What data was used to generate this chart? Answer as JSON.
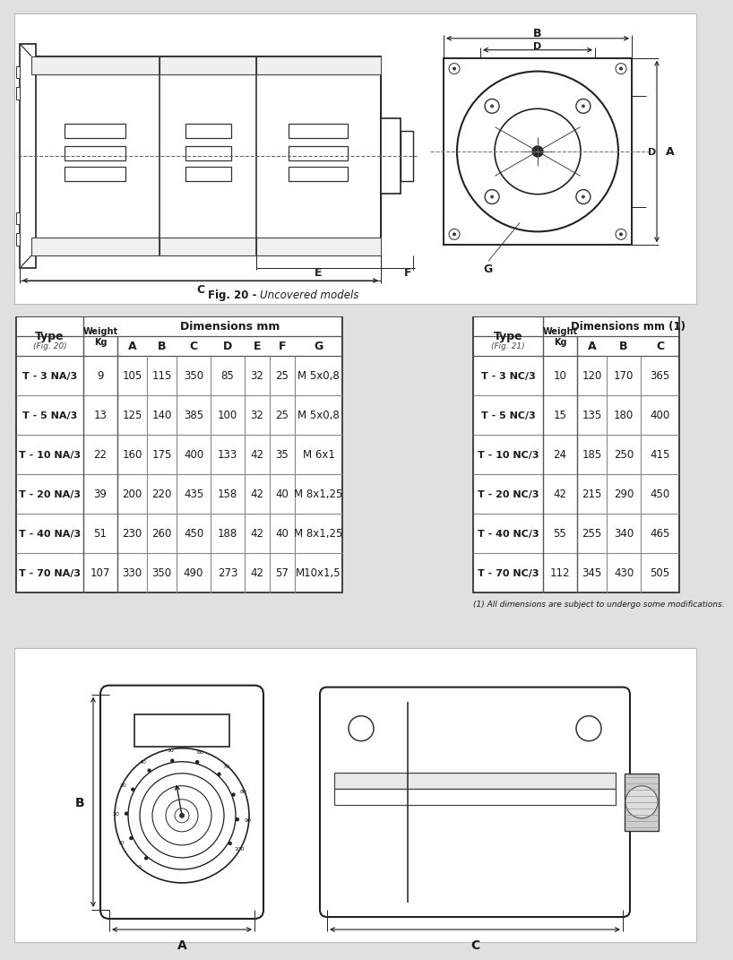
{
  "bg_color": "#e0e0e0",
  "white": "#ffffff",
  "black": "#1a1a1a",
  "fig20_caption_bold": "Fig. 20 - ",
  "fig20_caption_italic": "Uncovered models",
  "table1_rows": [
    [
      "T - 3 NA/3",
      "9",
      "105",
      "115",
      "350",
      "85",
      "32",
      "25",
      "M 5x0,8"
    ],
    [
      "T - 5 NA/3",
      "13",
      "125",
      "140",
      "385",
      "100",
      "32",
      "25",
      "M 5x0,8"
    ],
    [
      "T - 10 NA/3",
      "22",
      "160",
      "175",
      "400",
      "133",
      "42",
      "35",
      "M 6x1"
    ],
    [
      "T - 20 NA/3",
      "39",
      "200",
      "220",
      "435",
      "158",
      "42",
      "40",
      "M 8x1,25"
    ],
    [
      "T - 40 NA/3",
      "51",
      "230",
      "260",
      "450",
      "188",
      "42",
      "40",
      "M 8x1,25"
    ],
    [
      "T - 70 NA/3",
      "107",
      "330",
      "350",
      "490",
      "273",
      "42",
      "57",
      "M10x1,5"
    ]
  ],
  "table2_rows": [
    [
      "T - 3 NC/3",
      "10",
      "120",
      "170",
      "365"
    ],
    [
      "T - 5 NC/3",
      "15",
      "135",
      "180",
      "400"
    ],
    [
      "T - 10 NC/3",
      "24",
      "185",
      "250",
      "415"
    ],
    [
      "T - 20 NC/3",
      "42",
      "215",
      "290",
      "450"
    ],
    [
      "T - 40 NC/3",
      "55",
      "255",
      "340",
      "465"
    ],
    [
      "T - 70 NC/3",
      "112",
      "345",
      "430",
      "505"
    ]
  ],
  "table2_footnote": "(1) All dimensions are subject to undergo some modifications."
}
